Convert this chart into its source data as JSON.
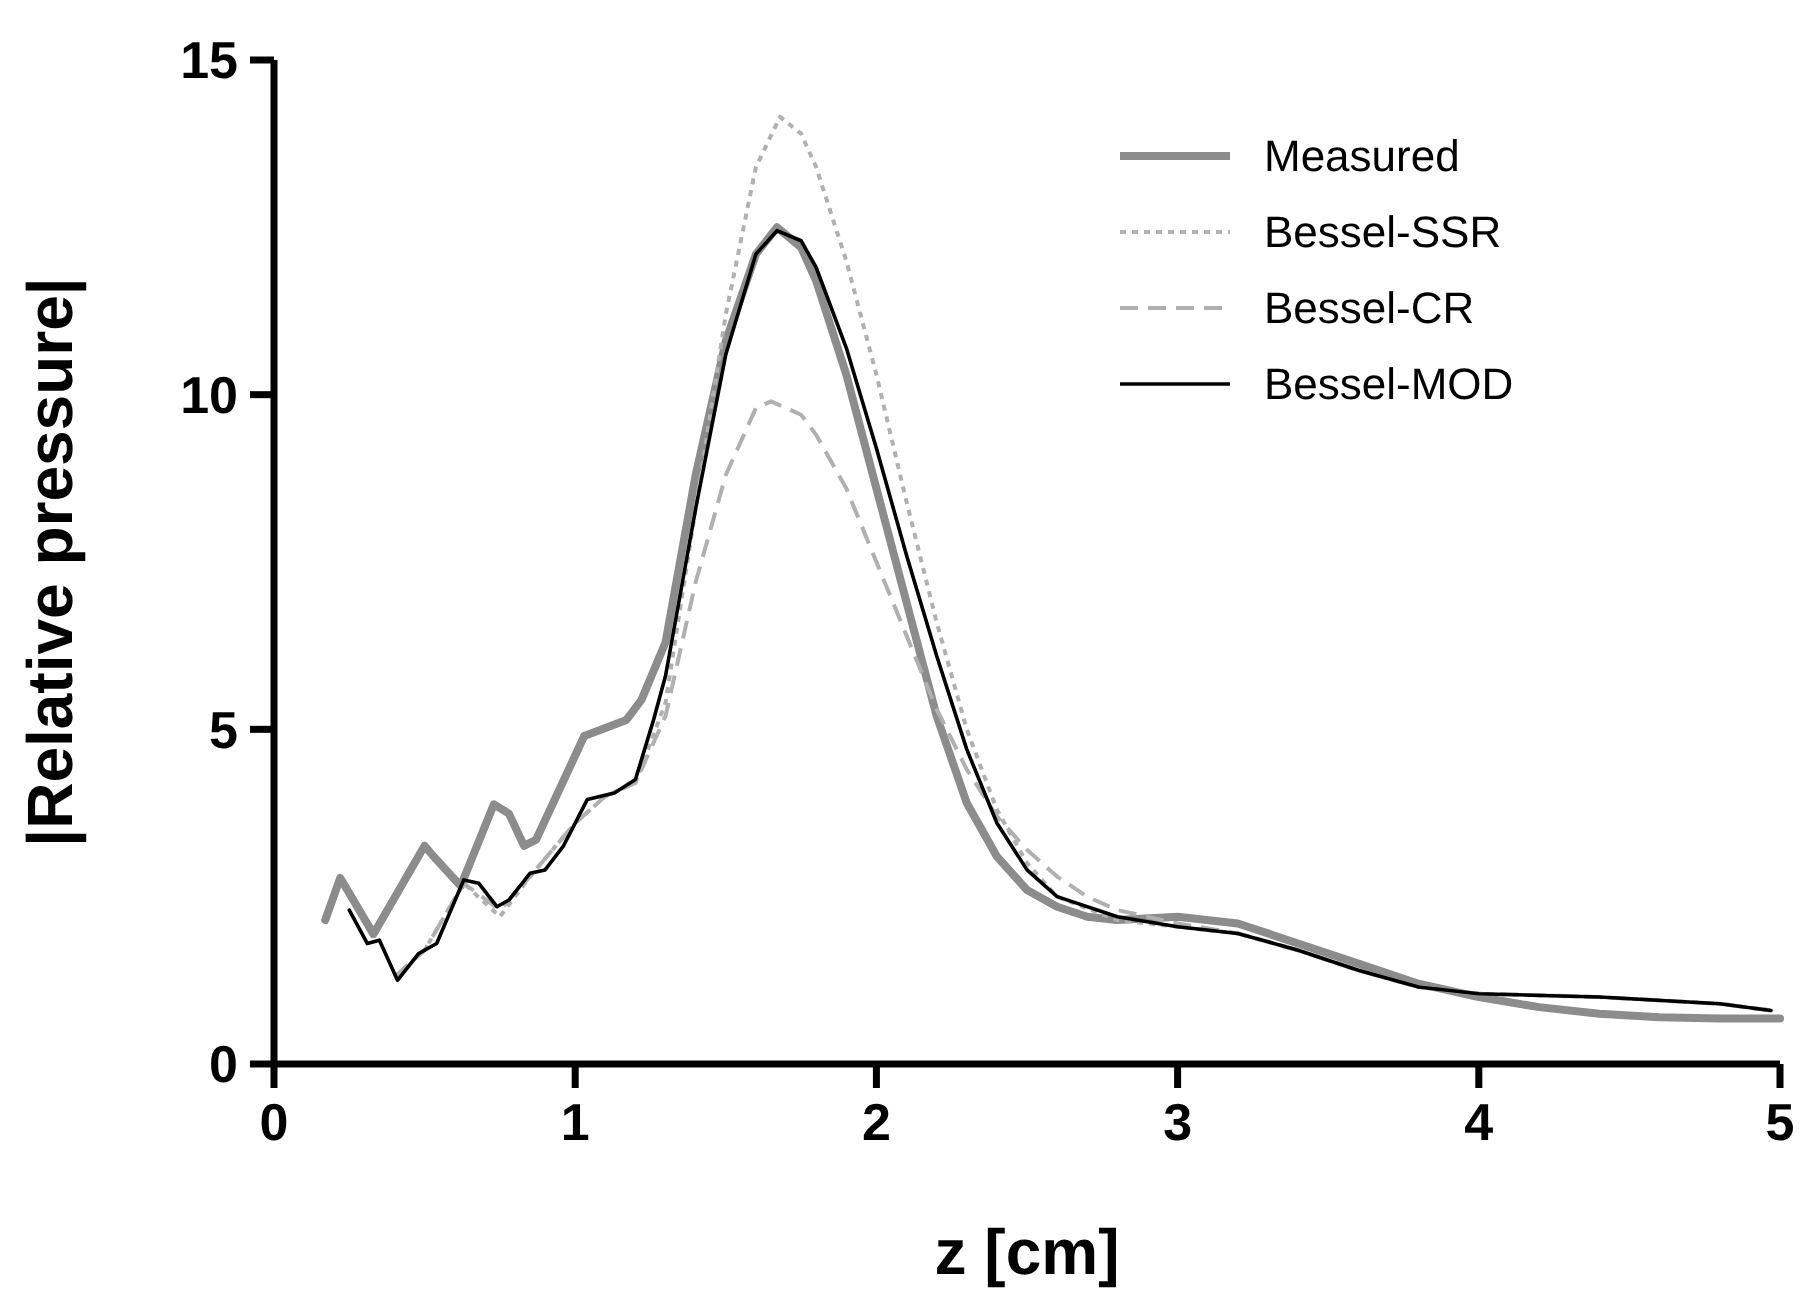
{
  "chart_data": {
    "type": "line",
    "xlabel": "z [cm]",
    "ylabel": "|Relative pressure|",
    "xlim": [
      0,
      5
    ],
    "xticks": [
      0,
      1,
      2,
      3,
      4,
      5
    ],
    "ylim": [
      0,
      15
    ],
    "yticks": [
      0,
      5,
      10,
      15
    ],
    "grid": false,
    "legend": "top right",
    "series": [
      {
        "name": "Measured",
        "color": "#8c8c8c",
        "line_style": "solid",
        "x": [
          0.17,
          0.22,
          0.33,
          0.5,
          0.53,
          0.62,
          0.73,
          0.78,
          0.83,
          0.87,
          1.03,
          1.17,
          1.22,
          1.3,
          1.4,
          1.5,
          1.6,
          1.67,
          1.75,
          1.8,
          1.9,
          2.0,
          2.1,
          2.2,
          2.3,
          2.4,
          2.5,
          2.6,
          2.7,
          2.8,
          3.0,
          3.2,
          3.4,
          3.6,
          3.8,
          4.0,
          4.2,
          4.4,
          4.6,
          4.8,
          5.0
        ],
        "values": [
          2.15,
          2.78,
          1.94,
          3.26,
          3.1,
          2.66,
          3.88,
          3.74,
          3.26,
          3.35,
          4.9,
          5.14,
          5.44,
          6.3,
          8.8,
          10.8,
          12.1,
          12.5,
          12.2,
          11.7,
          10.3,
          8.6,
          6.9,
          5.2,
          3.9,
          3.1,
          2.6,
          2.35,
          2.2,
          2.15,
          2.2,
          2.1,
          1.8,
          1.5,
          1.2,
          1.0,
          0.85,
          0.75,
          0.7,
          0.68,
          0.68
        ]
      },
      {
        "name": "Bessel-SSR",
        "color": "#b0b0b0",
        "line_style": "dotted",
        "x": [
          0.4,
          0.5,
          0.63,
          0.75,
          0.85,
          1.0,
          1.1,
          1.2,
          1.3,
          1.4,
          1.5,
          1.6,
          1.68,
          1.75,
          1.8,
          1.9,
          2.0,
          2.1,
          2.2,
          2.3,
          2.4,
          2.5,
          2.6,
          2.8,
          3.0,
          3.2,
          3.4,
          3.6,
          3.8,
          4.0,
          4.4,
          4.8,
          4.97
        ],
        "values": [
          1.3,
          1.7,
          2.7,
          2.2,
          2.8,
          3.6,
          4.0,
          4.2,
          5.4,
          8.3,
          11.2,
          13.4,
          14.15,
          13.9,
          13.4,
          12.0,
          10.3,
          8.4,
          6.6,
          5.0,
          3.8,
          3.0,
          2.5,
          2.15,
          2.05,
          1.95,
          1.7,
          1.4,
          1.15,
          1.05,
          1.0,
          0.9,
          0.8
        ]
      },
      {
        "name": "Bessel-CR",
        "color": "#b0b0b0",
        "line_style": "dashed",
        "x": [
          0.4,
          0.5,
          0.63,
          0.75,
          0.85,
          1.0,
          1.1,
          1.2,
          1.3,
          1.4,
          1.5,
          1.6,
          1.65,
          1.75,
          1.8,
          1.9,
          2.0,
          2.1,
          2.2,
          2.3,
          2.4,
          2.5,
          2.6,
          2.7,
          2.8,
          3.0,
          3.2,
          3.4,
          3.6,
          3.8,
          4.0,
          4.4,
          4.8,
          4.97
        ],
        "values": [
          1.3,
          1.7,
          2.7,
          2.3,
          2.8,
          3.6,
          4.0,
          4.2,
          5.2,
          7.2,
          8.8,
          9.8,
          9.9,
          9.7,
          9.4,
          8.6,
          7.5,
          6.4,
          5.3,
          4.4,
          3.7,
          3.2,
          2.8,
          2.5,
          2.3,
          2.1,
          1.95,
          1.7,
          1.4,
          1.15,
          1.05,
          1.0,
          0.9,
          0.8
        ]
      },
      {
        "name": "Bessel-MOD",
        "color": "#000000",
        "line_style": "solid",
        "x": [
          0.25,
          0.31,
          0.35,
          0.41,
          0.48,
          0.54,
          0.63,
          0.68,
          0.74,
          0.78,
          0.85,
          0.9,
          0.96,
          1.04,
          1.13,
          1.2,
          1.26,
          1.3,
          1.4,
          1.5,
          1.6,
          1.67,
          1.75,
          1.8,
          1.9,
          2.0,
          2.1,
          2.2,
          2.3,
          2.4,
          2.5,
          2.6,
          2.8,
          3.0,
          3.2,
          3.4,
          3.6,
          3.8,
          4.0,
          4.4,
          4.8,
          4.97
        ],
        "values": [
          2.3,
          1.8,
          1.85,
          1.25,
          1.65,
          1.8,
          2.75,
          2.7,
          2.35,
          2.45,
          2.85,
          2.9,
          3.25,
          3.95,
          4.05,
          4.25,
          5.14,
          5.8,
          8.3,
          10.6,
          12.1,
          12.45,
          12.3,
          11.9,
          10.7,
          9.2,
          7.6,
          6.1,
          4.7,
          3.6,
          2.9,
          2.5,
          2.2,
          2.05,
          1.95,
          1.7,
          1.4,
          1.15,
          1.05,
          1.0,
          0.9,
          0.8
        ]
      }
    ]
  }
}
